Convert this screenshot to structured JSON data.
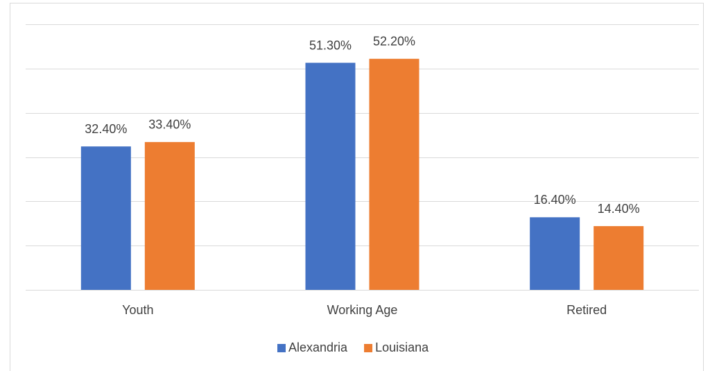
{
  "chart_data": {
    "type": "bar",
    "categories": [
      "Youth",
      "Working Age",
      "Retired"
    ],
    "series": [
      {
        "name": "Alexandria",
        "color": "#4472c4",
        "values": [
          32.4,
          51.3,
          16.4
        ],
        "value_labels": [
          "32.40%",
          "51.30%",
          "16.40%"
        ]
      },
      {
        "name": "Louisiana",
        "color": "#ed7d31",
        "values": [
          33.4,
          52.2,
          14.4
        ],
        "value_labels": [
          "33.40%",
          "52.20%",
          "14.40%"
        ]
      }
    ],
    "ylim": [
      0,
      60
    ],
    "yticks": [
      0,
      10,
      20,
      30,
      40,
      50,
      60
    ],
    "grid": true,
    "legend": "bottom"
  }
}
